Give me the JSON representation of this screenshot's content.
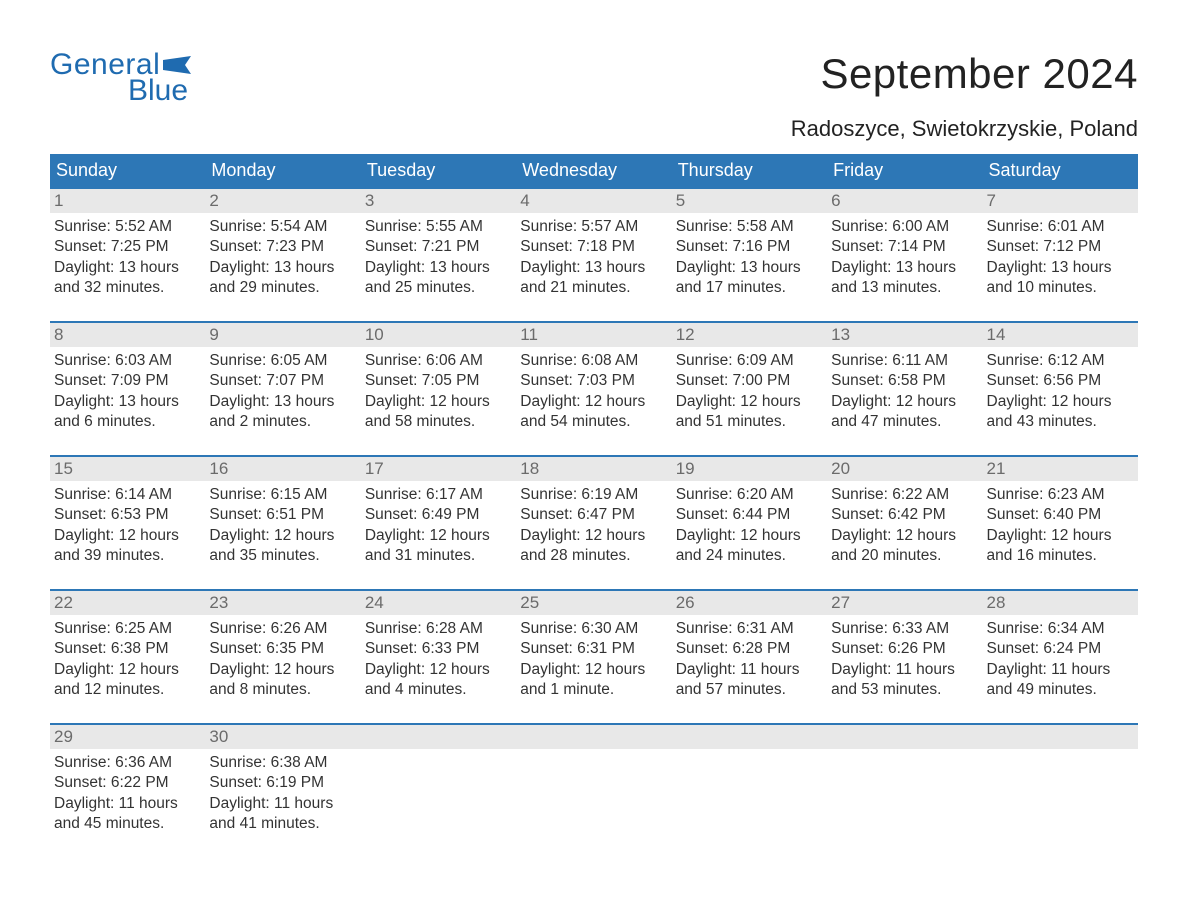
{
  "brand": {
    "name_top": "General",
    "name_bottom": "Blue",
    "color": "#1f6bb0"
  },
  "title": "September 2024",
  "location": "Radoszyce, Swietokrzyskie, Poland",
  "colors": {
    "header_bg": "#2d77b6",
    "header_text": "#ffffff",
    "daynum_bg": "#e8e8e8",
    "daynum_text": "#6b6b6b",
    "body_text": "#333333",
    "rule": "#2d77b6",
    "page_bg": "#ffffff"
  },
  "typography": {
    "title_fontsize": 42,
    "location_fontsize": 22,
    "header_fontsize": 18,
    "daynum_fontsize": 17,
    "body_fontsize": 15.5,
    "font_family": "Arial"
  },
  "layout": {
    "columns": 7,
    "rows": 5,
    "first_day_index": 0
  },
  "day_names": [
    "Sunday",
    "Monday",
    "Tuesday",
    "Wednesday",
    "Thursday",
    "Friday",
    "Saturday"
  ],
  "label_prefixes": {
    "sunrise": "Sunrise: ",
    "sunset": "Sunset: ",
    "daylight": "Daylight: "
  },
  "days": [
    {
      "n": "1",
      "sunrise": "5:52 AM",
      "sunset": "7:25 PM",
      "daylight": "13 hours and 32 minutes."
    },
    {
      "n": "2",
      "sunrise": "5:54 AM",
      "sunset": "7:23 PM",
      "daylight": "13 hours and 29 minutes."
    },
    {
      "n": "3",
      "sunrise": "5:55 AM",
      "sunset": "7:21 PM",
      "daylight": "13 hours and 25 minutes."
    },
    {
      "n": "4",
      "sunrise": "5:57 AM",
      "sunset": "7:18 PM",
      "daylight": "13 hours and 21 minutes."
    },
    {
      "n": "5",
      "sunrise": "5:58 AM",
      "sunset": "7:16 PM",
      "daylight": "13 hours and 17 minutes."
    },
    {
      "n": "6",
      "sunrise": "6:00 AM",
      "sunset": "7:14 PM",
      "daylight": "13 hours and 13 minutes."
    },
    {
      "n": "7",
      "sunrise": "6:01 AM",
      "sunset": "7:12 PM",
      "daylight": "13 hours and 10 minutes."
    },
    {
      "n": "8",
      "sunrise": "6:03 AM",
      "sunset": "7:09 PM",
      "daylight": "13 hours and 6 minutes."
    },
    {
      "n": "9",
      "sunrise": "6:05 AM",
      "sunset": "7:07 PM",
      "daylight": "13 hours and 2 minutes."
    },
    {
      "n": "10",
      "sunrise": "6:06 AM",
      "sunset": "7:05 PM",
      "daylight": "12 hours and 58 minutes."
    },
    {
      "n": "11",
      "sunrise": "6:08 AM",
      "sunset": "7:03 PM",
      "daylight": "12 hours and 54 minutes."
    },
    {
      "n": "12",
      "sunrise": "6:09 AM",
      "sunset": "7:00 PM",
      "daylight": "12 hours and 51 minutes."
    },
    {
      "n": "13",
      "sunrise": "6:11 AM",
      "sunset": "6:58 PM",
      "daylight": "12 hours and 47 minutes."
    },
    {
      "n": "14",
      "sunrise": "6:12 AM",
      "sunset": "6:56 PM",
      "daylight": "12 hours and 43 minutes."
    },
    {
      "n": "15",
      "sunrise": "6:14 AM",
      "sunset": "6:53 PM",
      "daylight": "12 hours and 39 minutes."
    },
    {
      "n": "16",
      "sunrise": "6:15 AM",
      "sunset": "6:51 PM",
      "daylight": "12 hours and 35 minutes."
    },
    {
      "n": "17",
      "sunrise": "6:17 AM",
      "sunset": "6:49 PM",
      "daylight": "12 hours and 31 minutes."
    },
    {
      "n": "18",
      "sunrise": "6:19 AM",
      "sunset": "6:47 PM",
      "daylight": "12 hours and 28 minutes."
    },
    {
      "n": "19",
      "sunrise": "6:20 AM",
      "sunset": "6:44 PM",
      "daylight": "12 hours and 24 minutes."
    },
    {
      "n": "20",
      "sunrise": "6:22 AM",
      "sunset": "6:42 PM",
      "daylight": "12 hours and 20 minutes."
    },
    {
      "n": "21",
      "sunrise": "6:23 AM",
      "sunset": "6:40 PM",
      "daylight": "12 hours and 16 minutes."
    },
    {
      "n": "22",
      "sunrise": "6:25 AM",
      "sunset": "6:38 PM",
      "daylight": "12 hours and 12 minutes."
    },
    {
      "n": "23",
      "sunrise": "6:26 AM",
      "sunset": "6:35 PM",
      "daylight": "12 hours and 8 minutes."
    },
    {
      "n": "24",
      "sunrise": "6:28 AM",
      "sunset": "6:33 PM",
      "daylight": "12 hours and 4 minutes."
    },
    {
      "n": "25",
      "sunrise": "6:30 AM",
      "sunset": "6:31 PM",
      "daylight": "12 hours and 1 minute."
    },
    {
      "n": "26",
      "sunrise": "6:31 AM",
      "sunset": "6:28 PM",
      "daylight": "11 hours and 57 minutes."
    },
    {
      "n": "27",
      "sunrise": "6:33 AM",
      "sunset": "6:26 PM",
      "daylight": "11 hours and 53 minutes."
    },
    {
      "n": "28",
      "sunrise": "6:34 AM",
      "sunset": "6:24 PM",
      "daylight": "11 hours and 49 minutes."
    },
    {
      "n": "29",
      "sunrise": "6:36 AM",
      "sunset": "6:22 PM",
      "daylight": "11 hours and 45 minutes."
    },
    {
      "n": "30",
      "sunrise": "6:38 AM",
      "sunset": "6:19 PM",
      "daylight": "11 hours and 41 minutes."
    }
  ]
}
